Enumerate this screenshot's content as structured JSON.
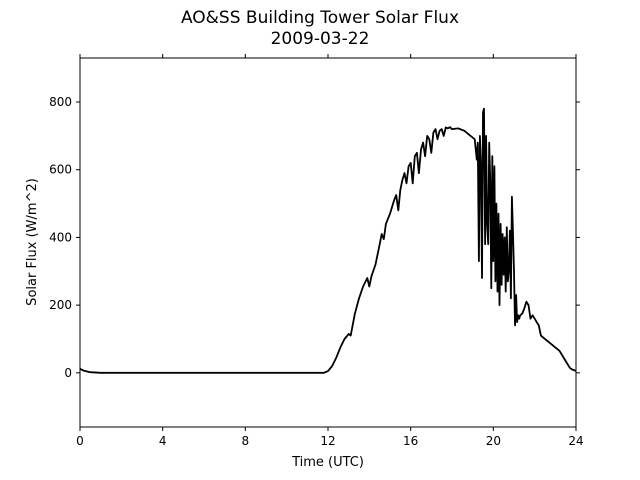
{
  "chart_data": {
    "type": "line",
    "title": "AO&SS Building Tower Solar Flux",
    "subtitle": "2009-03-22",
    "xlabel": "Time (UTC)",
    "ylabel": "Solar Flux (W/m^2)",
    "xlim": [
      0,
      24
    ],
    "ylim": [
      -160,
      930
    ],
    "xticks": [
      0,
      4,
      8,
      12,
      16,
      20,
      24
    ],
    "yticks": [
      0,
      200,
      400,
      600,
      800
    ],
    "grid": false,
    "legend": "none",
    "line_color": "#000000",
    "series": [
      {
        "x": [
          0,
          0.2,
          0.5,
          1,
          2,
          4,
          6,
          8,
          10,
          11,
          11.8,
          12.0,
          12.2,
          12.4,
          12.6,
          12.8,
          13.0,
          13.1,
          13.3,
          13.5,
          13.7,
          13.9,
          14.0,
          14.1,
          14.3,
          14.5,
          14.6,
          14.7,
          14.8,
          15.0,
          15.2,
          15.3,
          15.4,
          15.5,
          15.6,
          15.7,
          15.8,
          15.9,
          16.0,
          16.1,
          16.2,
          16.3,
          16.4,
          16.5,
          16.6,
          16.7,
          16.8,
          16.9,
          17.0,
          17.1,
          17.2,
          17.3,
          17.4,
          17.5,
          17.6,
          17.7,
          17.8,
          17.9,
          18.0,
          18.3,
          18.6,
          18.9,
          19.1,
          19.2,
          19.25,
          19.3,
          19.35,
          19.4,
          19.45,
          19.5,
          19.55,
          19.6,
          19.65,
          19.7,
          19.75,
          19.8,
          19.85,
          19.9,
          19.95,
          20.0,
          20.05,
          20.1,
          20.15,
          20.2,
          20.25,
          20.3,
          20.35,
          20.4,
          20.45,
          20.5,
          20.55,
          20.6,
          20.65,
          20.7,
          20.75,
          20.8,
          20.85,
          20.9,
          20.95,
          21.0,
          21.05,
          21.1,
          21.15,
          21.2,
          21.25,
          21.3,
          21.4,
          21.5,
          21.6,
          21.7,
          21.8,
          21.9,
          22.0,
          22.1,
          22.2,
          22.3,
          22.4,
          22.5,
          22.6,
          22.8,
          23.0,
          23.2,
          23.4,
          23.6,
          23.7,
          23.8,
          23.9,
          24.0
        ],
        "y": [
          12,
          6,
          2,
          0,
          0,
          0,
          0,
          0,
          0,
          0,
          0,
          5,
          20,
          45,
          75,
          100,
          115,
          110,
          175,
          220,
          255,
          280,
          255,
          285,
          320,
          380,
          410,
          395,
          440,
          470,
          510,
          525,
          480,
          540,
          570,
          590,
          560,
          610,
          620,
          560,
          640,
          650,
          590,
          660,
          680,
          640,
          700,
          690,
          650,
          710,
          720,
          690,
          715,
          720,
          700,
          725,
          722,
          726,
          720,
          722,
          715,
          700,
          690,
          630,
          680,
          330,
          700,
          620,
          280,
          770,
          780,
          380,
          700,
          440,
          380,
          680,
          570,
          250,
          640,
          330,
          610,
          270,
          500,
          240,
          470,
          200,
          440,
          260,
          410,
          290,
          400,
          240,
          430,
          270,
          300,
          420,
          220,
          520,
          410,
          300,
          140,
          230,
          150,
          170,
          160,
          170,
          175,
          190,
          210,
          200,
          160,
          170,
          160,
          150,
          140,
          110,
          105,
          100,
          95,
          85,
          75,
          65,
          45,
          25,
          15,
          10,
          8,
          5
        ]
      }
    ]
  }
}
